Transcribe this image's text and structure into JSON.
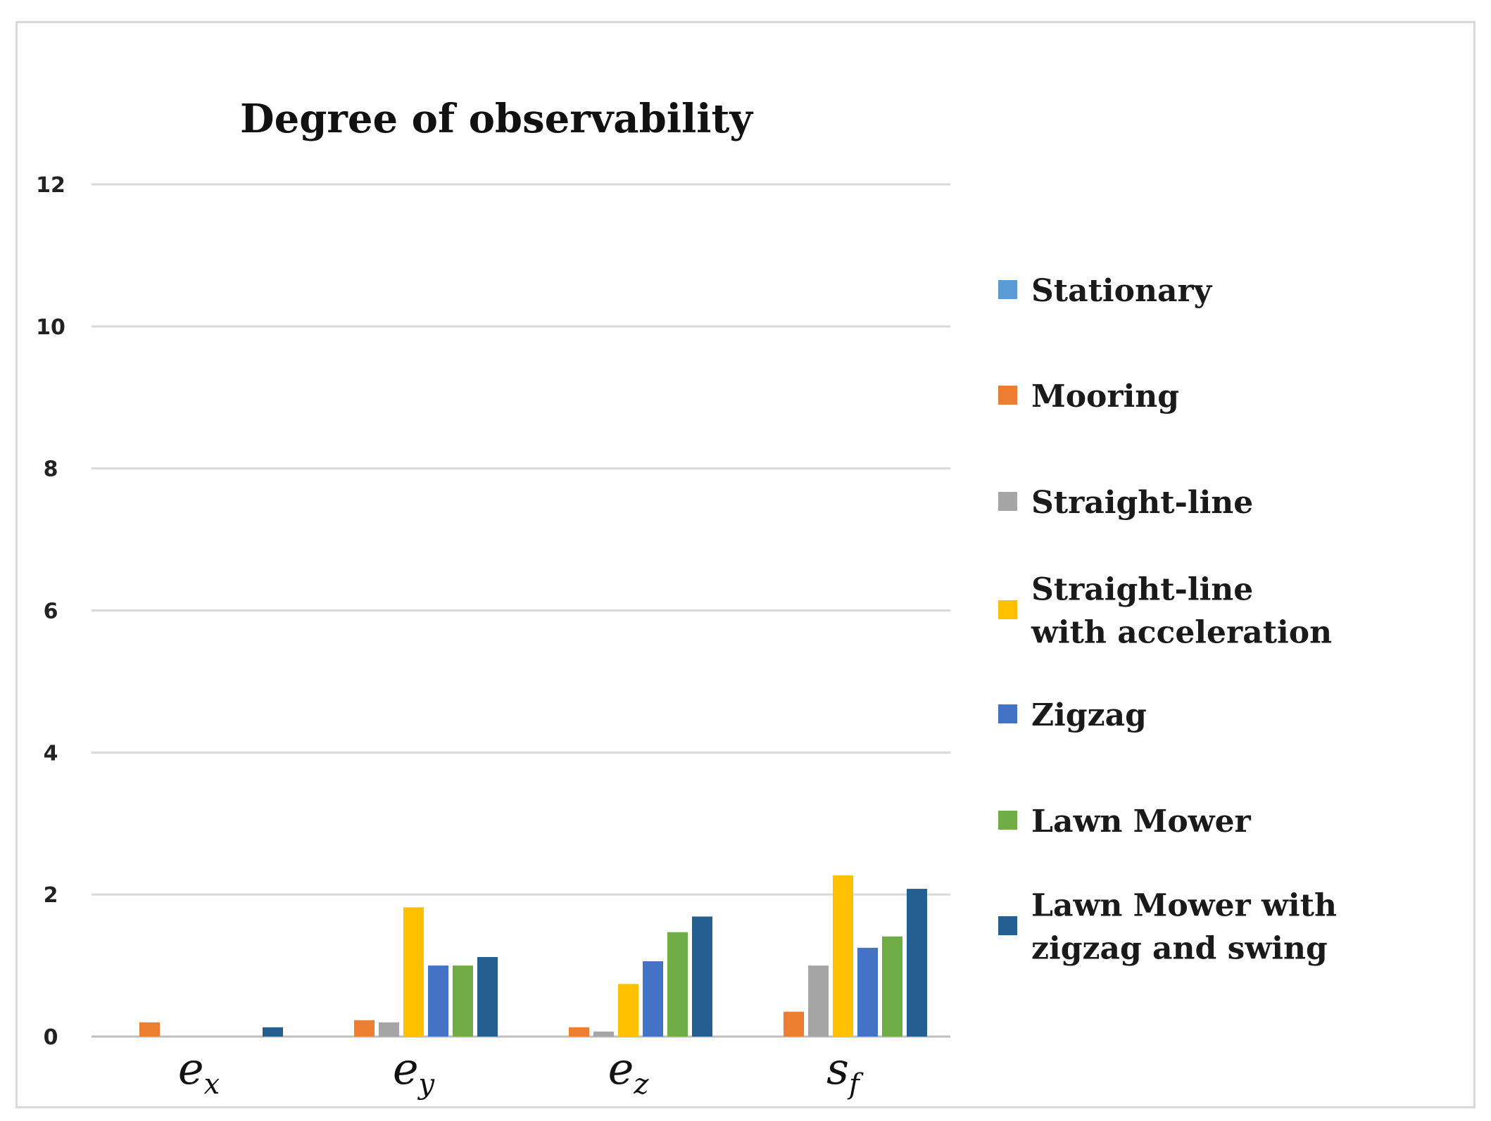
{
  "chart_data": {
    "type": "bar",
    "title": "Degree of observability",
    "xlabel": "",
    "ylabel": "",
    "ylim": [
      0,
      12
    ],
    "yticks": [
      "0",
      "2",
      "4",
      "6",
      "8",
      "10",
      "12"
    ],
    "grid": true,
    "legend_position": "right",
    "categories": [
      {
        "base": "e",
        "sub": "x"
      },
      {
        "base": "e",
        "sub": "y"
      },
      {
        "base": "e",
        "sub": "z"
      },
      {
        "base": "s",
        "sub": "f"
      }
    ],
    "series": [
      {
        "name": "Stationary",
        "legend_lines": [
          "Stationary"
        ],
        "color": "#5B9BD5",
        "values": [
          0,
          0,
          0,
          0
        ]
      },
      {
        "name": "Mooring",
        "legend_lines": [
          "Mooring"
        ],
        "color": "#ED7D31",
        "values": [
          0.2,
          0.23,
          0.13,
          0.35
        ]
      },
      {
        "name": "Straight-line",
        "legend_lines": [
          "Straight-line"
        ],
        "color": "#A5A5A5",
        "values": [
          0,
          0.2,
          0.07,
          1.0
        ]
      },
      {
        "name": "Straight-line with acceleration",
        "legend_lines": [
          "Straight-line",
          "with acceleration"
        ],
        "color": "#FFC000",
        "values": [
          0,
          1.82,
          0.74,
          2.27
        ]
      },
      {
        "name": "Zigzag",
        "legend_lines": [
          " Zigzag"
        ],
        "color": "#4472C4",
        "values": [
          0,
          1.0,
          1.06,
          1.25
        ]
      },
      {
        "name": "Lawn Mower",
        "legend_lines": [
          "Lawn Mower"
        ],
        "color": "#70AD47",
        "values": [
          0,
          1.0,
          1.47,
          1.41
        ]
      },
      {
        "name": "Lawn Mower with zigzag and swing",
        "legend_lines": [
          "Lawn Mower with",
          "zigzag and swing"
        ],
        "color": "#255E91",
        "values": [
          0.13,
          1.12,
          1.69,
          2.08
        ]
      }
    ]
  }
}
